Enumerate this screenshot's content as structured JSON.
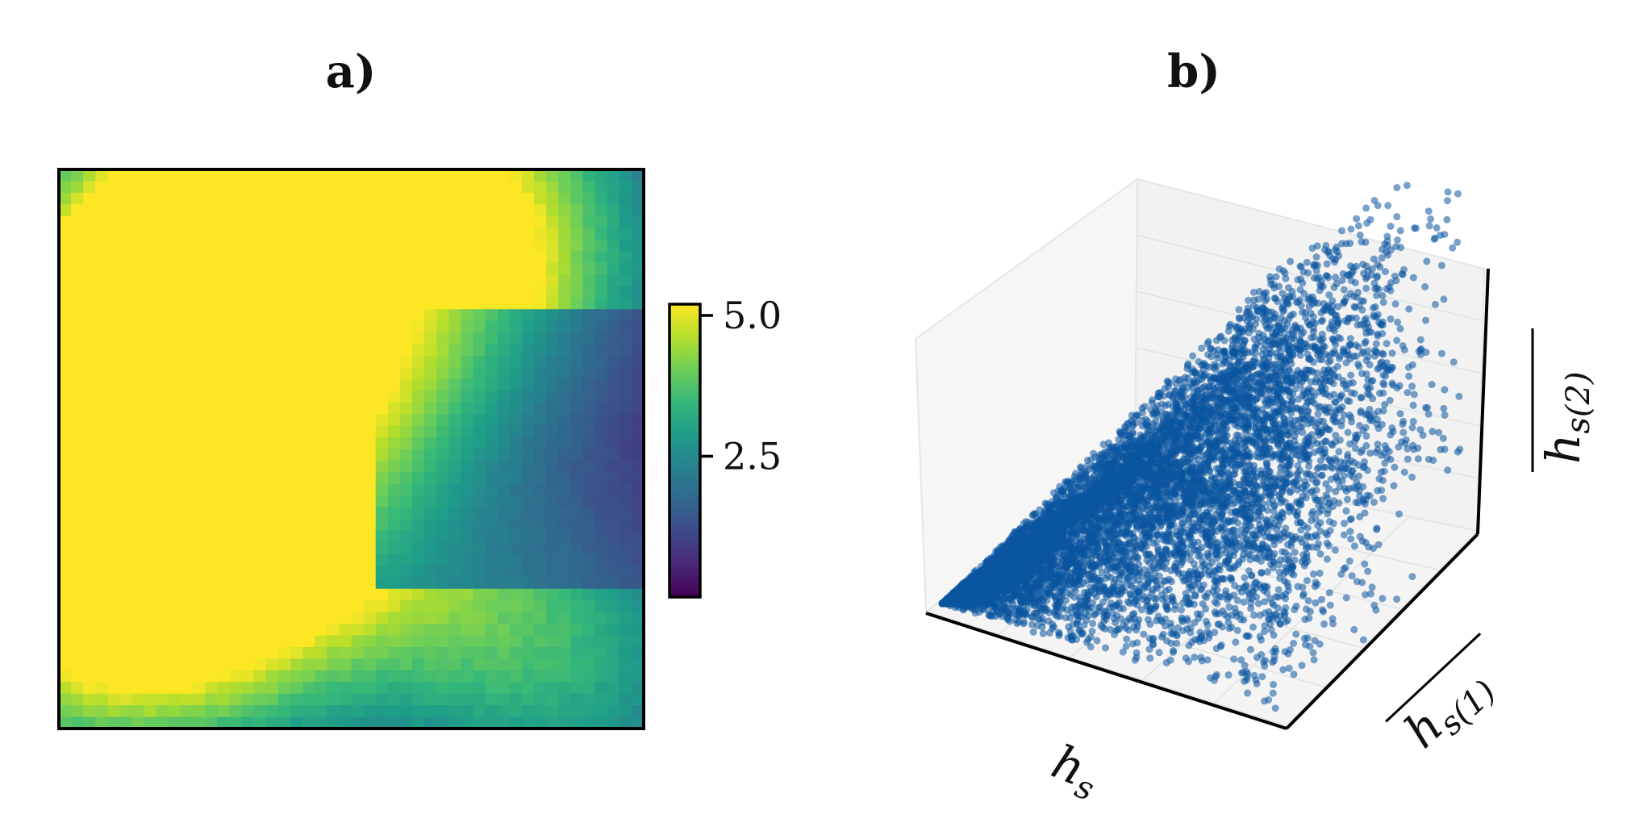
{
  "panels": {
    "a": {
      "label": "a)"
    },
    "b": {
      "label": "b)"
    }
  },
  "colors": {
    "viridis": [
      "#440154",
      "#482878",
      "#3e4989",
      "#31688e",
      "#26828e",
      "#1f9e89",
      "#35b779",
      "#6ece58",
      "#b5de2b",
      "#fde725"
    ],
    "scatter": "#0b56a0",
    "axis": "#000000",
    "pane": "#f3f3f3"
  },
  "chart_data": [
    {
      "type": "heatmap",
      "title": "",
      "xlabel": "",
      "ylabel": "",
      "colorbar": {
        "ticks": [
          2.5,
          5.0
        ],
        "tick_labels": [
          "2.5",
          "5.0"
        ],
        "range": [
          0,
          5.2
        ],
        "colormap": "viridis"
      },
      "grid_shape": [
        48,
        48
      ],
      "features": [
        {
          "kind": "peak",
          "x": 0.46,
          "y": 0.1,
          "value": 5.0
        },
        {
          "kind": "cluster",
          "x": 0.08,
          "y": 0.48,
          "value": 3.2
        },
        {
          "kind": "cluster",
          "x": 0.12,
          "y": 0.75,
          "value": 3.4
        },
        {
          "kind": "cluster",
          "x": 0.77,
          "y": 0.13,
          "value": 2.8
        },
        {
          "kind": "cluster",
          "x": 0.79,
          "y": 0.84,
          "value": 2.4
        },
        {
          "kind": "cluster",
          "x": 0.97,
          "y": 0.93,
          "value": 1.8
        }
      ]
    },
    {
      "type": "scatter",
      "projection": "3d",
      "title": "",
      "axes": {
        "x": {
          "label": "h",
          "sub": "s"
        },
        "y": {
          "label": "h",
          "sub": "s(1)",
          "overline": true
        },
        "z": {
          "label": "h",
          "sub": "s(2)",
          "overline": true
        }
      },
      "ticks_shown": false,
      "grid": true,
      "n_points": 9000,
      "distribution": "points with z <= x, densest near the origin, sparser tail toward large x and y"
    }
  ]
}
